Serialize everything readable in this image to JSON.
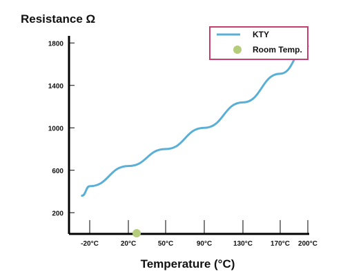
{
  "chart_data": {
    "type": "line",
    "ylabel": "Resistance Ω",
    "xlabel": "Temperature (°C)",
    "x_categories": [
      "-20°C",
      "20°C",
      "50°C",
      "90°C",
      "130°C",
      "170°C",
      "200°C"
    ],
    "y_ticks": [
      200,
      600,
      1000,
      1400,
      1800
    ],
    "ylim": [
      0,
      2100
    ],
    "grid": false,
    "legend_position": "top-right",
    "series": [
      {
        "name": "KTY",
        "color": "#5aafd6",
        "x": [
          "-20°C",
          "20°C",
          "50°C",
          "90°C",
          "130°C",
          "170°C",
          "200°C"
        ],
        "y": [
          450,
          640,
          800,
          1000,
          1240,
          1510,
          1770
        ],
        "x_start_offset": -0.2,
        "y_start": 360
      }
    ],
    "markers": [
      {
        "name": "Room Temp.",
        "color": "#b5cc7a",
        "x": "20°C",
        "y": 0
      }
    ]
  }
}
